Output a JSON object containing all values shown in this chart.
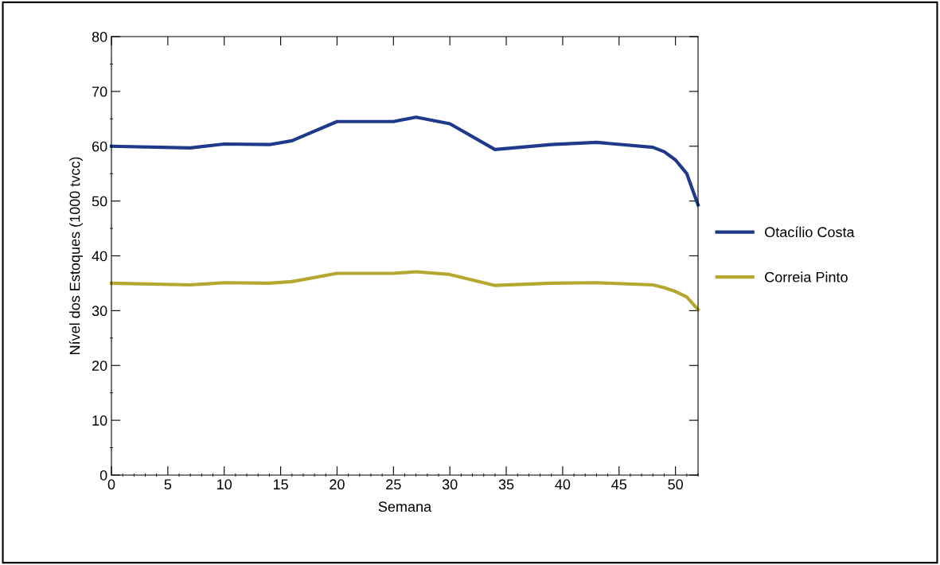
{
  "chart_data": {
    "type": "line",
    "xlabel": "Semana",
    "ylabel": "Nível dos Estoques (1000 tvcc)",
    "xlim": [
      0,
      52
    ],
    "xticks": [
      0,
      5,
      10,
      15,
      20,
      25,
      30,
      35,
      40,
      45,
      50
    ],
    "ylim": [
      0,
      80
    ],
    "yticks": [
      0,
      10,
      20,
      30,
      40,
      50,
      60,
      70,
      80
    ],
    "x": [
      0,
      7,
      10,
      14,
      16,
      20,
      25,
      27,
      30,
      34,
      39,
      43,
      48,
      49,
      50,
      51,
      52
    ],
    "series": [
      {
        "name": "Otacílio Costa",
        "color": "#1f3a8a",
        "values": [
          60,
          59.7,
          60.4,
          60.3,
          61,
          64.5,
          64.5,
          65.3,
          64.1,
          59.4,
          60.3,
          60.7,
          59.8,
          59,
          57.5,
          55,
          49.3
        ]
      },
      {
        "name": "Correia Pinto",
        "color": "#b5a830",
        "values": [
          35,
          34.7,
          35.1,
          35,
          35.3,
          36.8,
          36.8,
          37.1,
          36.6,
          34.6,
          35,
          35.1,
          34.7,
          34.2,
          33.5,
          32.5,
          30.2
        ]
      }
    ],
    "legend": "right",
    "grid": false,
    "marker": "none",
    "line_style": "solid"
  }
}
